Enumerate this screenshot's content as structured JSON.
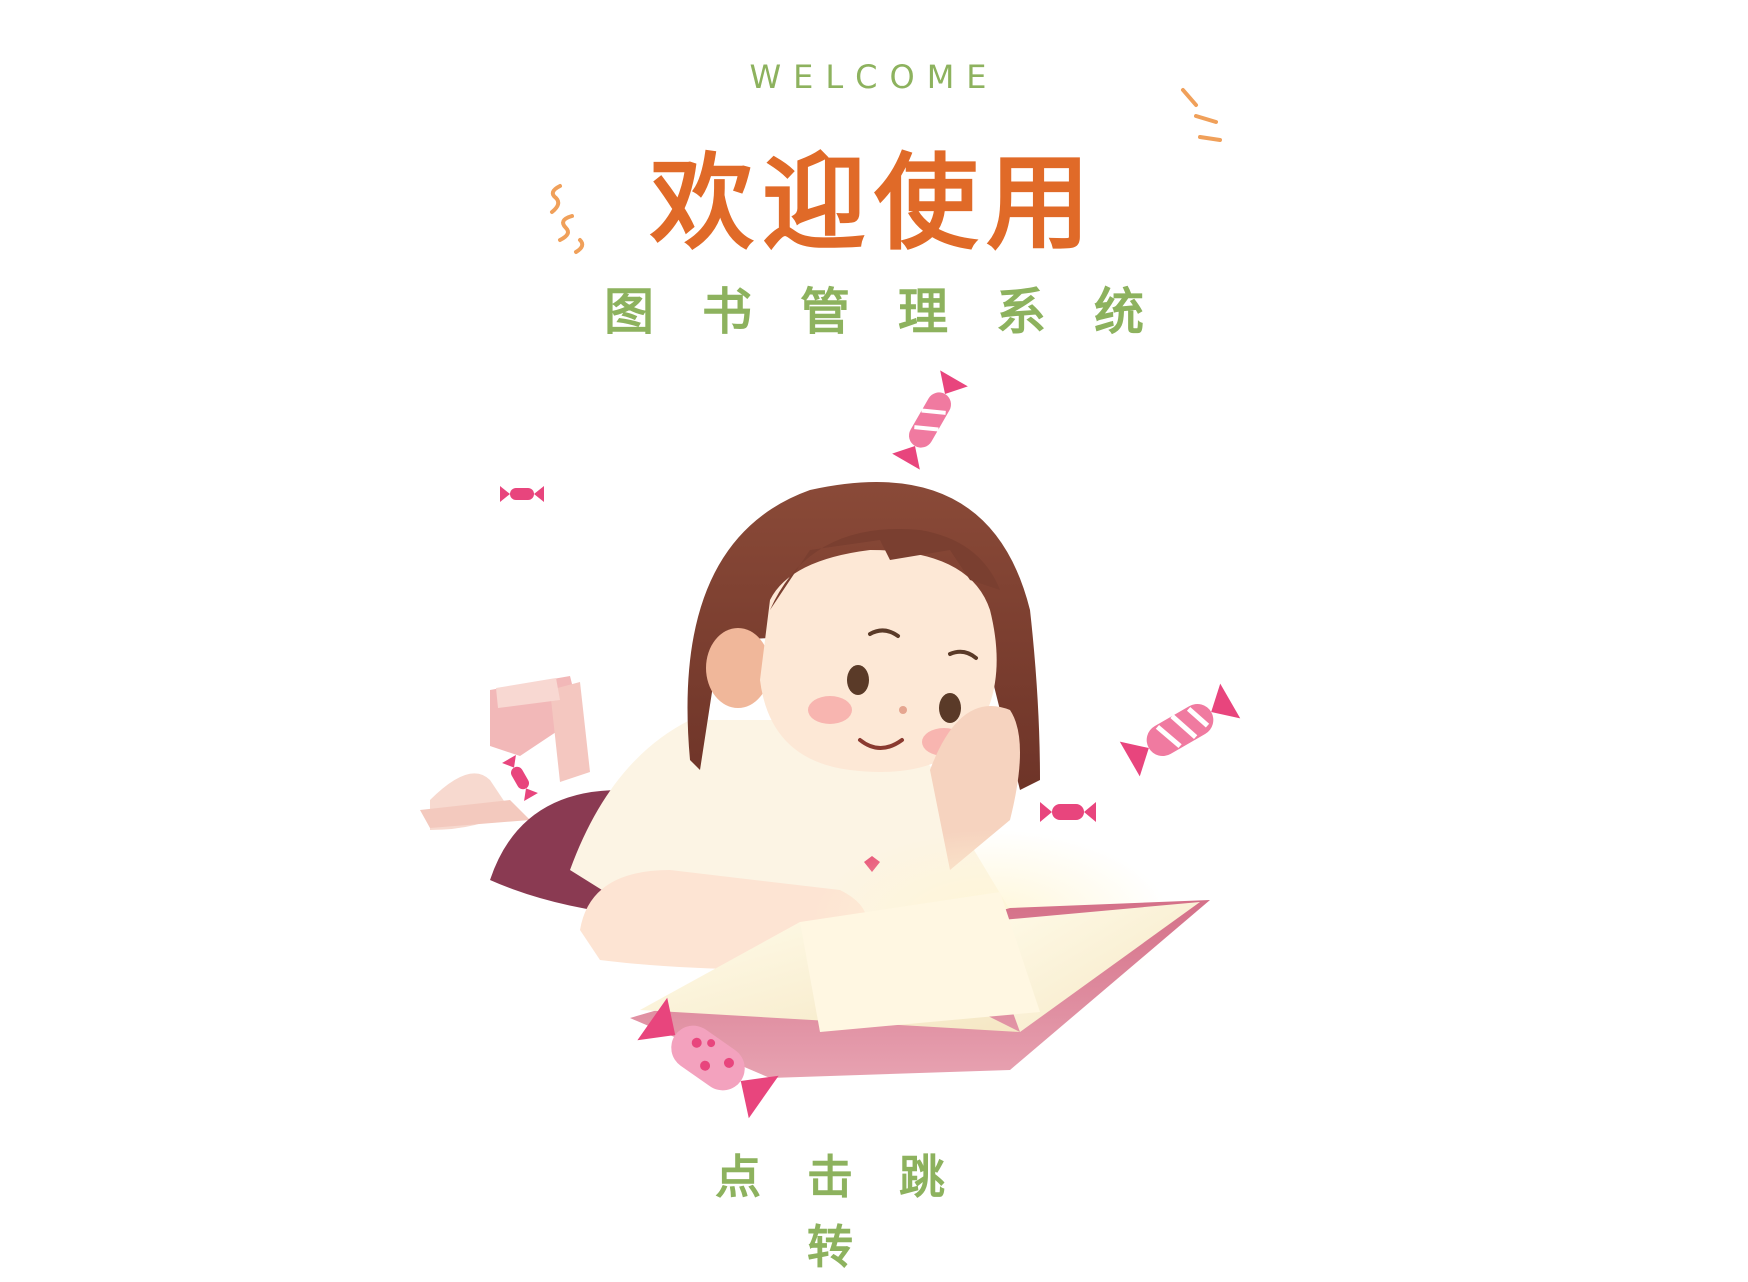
{
  "header": {
    "welcome": "WELCOME",
    "title": "欢迎使用",
    "subtitle": "图书管理系统"
  },
  "action": {
    "jump_label": "点击跳转"
  },
  "colors": {
    "title_orange": "#e06a28",
    "accent_green": "#8db25e",
    "candy_pink": "#e8457d",
    "hair_brown": "#7a3f30",
    "book_pink": "#d9798f"
  },
  "illustration": {
    "subject": "girl-reading-book-illustration",
    "decorations": [
      "candy-icon",
      "sparkle-lines-icon"
    ]
  }
}
